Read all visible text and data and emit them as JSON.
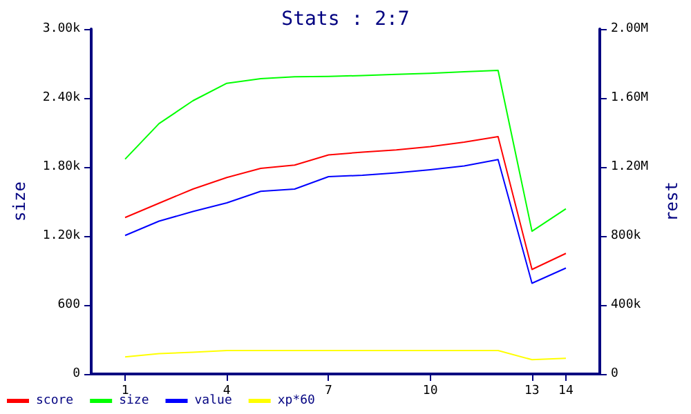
{
  "chart_data": {
    "type": "line",
    "title": "Stats : 2:7",
    "ylabel": "size",
    "y2label": "rest",
    "x": [
      1,
      2,
      3,
      4,
      5,
      6,
      7,
      8,
      9,
      10,
      11,
      12,
      13,
      14
    ],
    "series": [
      {
        "name": "score",
        "color": "#ff0000",
        "axis": "y2",
        "values": [
          907000,
          990000,
          1072000,
          1139000,
          1192000,
          1211000,
          1270000,
          1286000,
          1299000,
          1318000,
          1344000,
          1376000,
          606000,
          699000
        ]
      },
      {
        "name": "size",
        "color": "#00ff00",
        "values": [
          1868,
          2177,
          2376,
          2528,
          2568,
          2585,
          2588,
          2595,
          2605,
          2615,
          2628,
          2640,
          1241,
          1436
        ]
      },
      {
        "name": "value",
        "color": "#0000ff",
        "axis": "y2",
        "values": [
          803000,
          886000,
          942000,
          992000,
          1059000,
          1072000,
          1144000,
          1152000,
          1166000,
          1184000,
          1206000,
          1243000,
          526000,
          614000
        ]
      },
      {
        "name": "xp*60",
        "color": "#ffff00",
        "axis": "y2",
        "values": [
          99000,
          118000,
          126000,
          136000,
          136000,
          136000,
          136000,
          136000,
          136000,
          136000,
          136000,
          136000,
          83000,
          91000
        ]
      }
    ],
    "xlim": [
      0,
      15
    ],
    "xticks": [
      1,
      4,
      7,
      10,
      13,
      14
    ],
    "ylim": [
      0,
      3000
    ],
    "yticks": [
      0,
      600,
      {
        "value": 1200,
        "label": "1.20k"
      },
      {
        "value": 1800,
        "label": "1.80k"
      },
      {
        "value": 2400,
        "label": "2.40k"
      },
      {
        "value": 3000,
        "label": "3.00k"
      }
    ],
    "y2lim": [
      0,
      2000000
    ],
    "y2ticks": [
      0,
      {
        "value": 400000,
        "label": "400k"
      },
      {
        "value": 800000,
        "label": "800k"
      },
      {
        "value": 1200000,
        "label": "1.20M"
      },
      {
        "value": 1600000,
        "label": "1.60M"
      },
      {
        "value": 2000000,
        "label": "2.00M"
      }
    ],
    "grid": false,
    "legend": "bottom left",
    "marker": "none",
    "line_style": "solid"
  }
}
